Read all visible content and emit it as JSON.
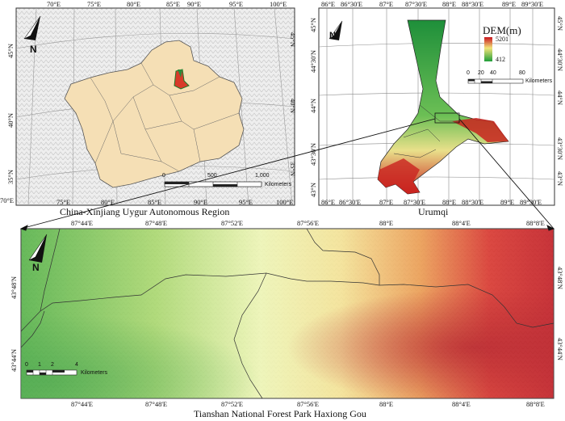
{
  "panel_china": {
    "caption": "China-Xinjiang Uygur Autonomous Region",
    "top_labels": [
      "70°E",
      "75°E",
      "80°E",
      "85°E",
      "90°E",
      "95°E",
      "100°E"
    ],
    "bottom_labels": [
      "75°E",
      "80°E",
      "85°E",
      "90°E",
      "95°E",
      "100°E"
    ],
    "left_labels": [
      "45°N",
      "40°N",
      "35°N",
      "70°E"
    ],
    "right_labels": [
      "45°N",
      "40°N",
      "35°N"
    ],
    "north_label": "N",
    "scalebar": {
      "ticks": [
        "0",
        "500",
        "1,000"
      ],
      "unit": "Kilometers"
    }
  },
  "panel_urumqi": {
    "caption": "Urumqi",
    "top_labels": [
      "86°E",
      "86°30'E",
      "87°E",
      "87°30'E",
      "88°E",
      "88°30'E",
      "89°E",
      "89°30'E"
    ],
    "bottom_labels": [
      "86°E",
      "86°30'E",
      "87°E",
      "87°30'E",
      "88°E",
      "88°30'E",
      "89°E",
      "89°30'E"
    ],
    "left_labels": [
      "45°N",
      "44°30'N",
      "44°N",
      "43°30'N",
      "43°N"
    ],
    "right_labels": [
      "45°N",
      "44°30'N",
      "44°N",
      "43°30'N",
      "43°N"
    ],
    "north_label": "N",
    "legend": {
      "title": "DEM(m)",
      "max": "5201",
      "min": "412",
      "high_color": "#c8141e",
      "low_color": "#1f9e3a"
    },
    "scalebar": {
      "ticks": [
        "0",
        "20",
        "40",
        "80"
      ],
      "unit": "Kilometers"
    }
  },
  "panel_park": {
    "caption": "Tianshan National Forest Park Haxiong Gou",
    "top_labels": [
      "87°44'E",
      "87°48'E",
      "87°52'E",
      "87°56'E",
      "88°E",
      "88°4'E",
      "88°8'E"
    ],
    "bottom_labels": [
      "87°44'E",
      "87°48'E",
      "87°52'E",
      "87°56'E",
      "88°E",
      "88°4'E",
      "88°8'E"
    ],
    "left_labels": [
      "43°48'N",
      "43°44'N"
    ],
    "right_labels": [
      "43°48'N",
      "43°44'N"
    ],
    "north_label": "N",
    "scalebar": {
      "ticks": [
        "0",
        "1",
        "2",
        "4"
      ],
      "unit": "Kilometers"
    }
  }
}
